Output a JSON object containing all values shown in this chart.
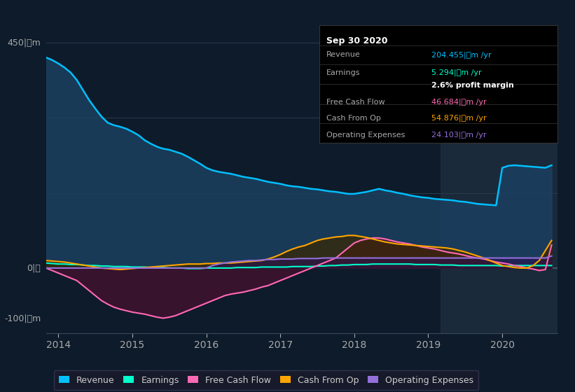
{
  "bg_color": "#0d1b2a",
  "plot_bg_color": "#0d1b2a",
  "ylabel_top": "450|ฮm",
  "ylabel_zero": "0|ฮ",
  "ylabel_bot": "-100|ฮm",
  "xlabel_ticks": [
    "2014",
    "2015",
    "2016",
    "2017",
    "2018",
    "2019",
    "2020"
  ],
  "ylim": [
    -130,
    480
  ],
  "xlim": [
    0,
    83
  ],
  "info_box": {
    "title": "Sep 30 2020",
    "rows": [
      {
        "label": "Revenue",
        "value": "204.455|ฮm /yr",
        "value_color": "#00bfff"
      },
      {
        "label": "Earnings",
        "value": "5.294|ฮm /yr",
        "value_color": "#00ffcc"
      },
      {
        "label": "",
        "value": "2.6% profit margin",
        "value_color": "#ffffff",
        "bold": true
      },
      {
        "label": "Free Cash Flow",
        "value": "46.684|ฮm /yr",
        "value_color": "#ff69b4"
      },
      {
        "label": "Cash From Op",
        "value": "54.876|ฮm /yr",
        "value_color": "#ffa500"
      },
      {
        "label": "Operating Expenses",
        "value": "24.103|ฮm /yr",
        "value_color": "#9370db"
      }
    ]
  },
  "legend": [
    {
      "label": "Revenue",
      "color": "#00bfff"
    },
    {
      "label": "Earnings",
      "color": "#00ffcc"
    },
    {
      "label": "Free Cash Flow",
      "color": "#ff69b4"
    },
    {
      "label": "Cash From Op",
      "color": "#ffa500"
    },
    {
      "label": "Operating Expenses",
      "color": "#9370db"
    }
  ],
  "revenue": [
    420,
    415,
    408,
    400,
    390,
    375,
    355,
    335,
    318,
    302,
    290,
    285,
    282,
    278,
    272,
    265,
    255,
    248,
    242,
    238,
    236,
    232,
    228,
    222,
    215,
    208,
    200,
    195,
    192,
    190,
    188,
    185,
    182,
    180,
    178,
    175,
    172,
    170,
    168,
    165,
    163,
    162,
    160,
    158,
    157,
    155,
    153,
    152,
    150,
    148,
    148,
    150,
    152,
    155,
    158,
    155,
    153,
    150,
    148,
    145,
    143,
    141,
    140,
    138,
    137,
    136,
    135,
    133,
    132,
    130,
    128,
    127,
    126,
    125,
    200,
    204,
    205,
    204,
    203,
    202,
    201,
    200,
    205
  ],
  "earnings": [
    10,
    9,
    8,
    8,
    7,
    7,
    6,
    5,
    5,
    4,
    4,
    3,
    3,
    3,
    2,
    2,
    2,
    1,
    1,
    1,
    0,
    0,
    0,
    -1,
    -1,
    -1,
    0,
    0,
    0,
    0,
    0,
    1,
    1,
    1,
    1,
    2,
    2,
    2,
    2,
    2,
    3,
    3,
    3,
    3,
    4,
    4,
    5,
    5,
    6,
    6,
    7,
    7,
    7,
    8,
    8,
    8,
    8,
    8,
    8,
    8,
    7,
    7,
    7,
    7,
    6,
    6,
    6,
    5,
    5,
    5,
    5,
    5,
    5,
    5,
    4,
    4,
    5,
    5,
    5,
    5,
    5,
    5,
    5
  ],
  "free_cash_flow": [
    0,
    -5,
    -10,
    -15,
    -20,
    -25,
    -35,
    -45,
    -55,
    -65,
    -72,
    -78,
    -82,
    -85,
    -88,
    -90,
    -92,
    -95,
    -98,
    -100,
    -98,
    -95,
    -90,
    -85,
    -80,
    -75,
    -70,
    -65,
    -60,
    -55,
    -52,
    -50,
    -48,
    -45,
    -42,
    -38,
    -35,
    -30,
    -25,
    -20,
    -15,
    -10,
    -5,
    0,
    5,
    10,
    15,
    20,
    30,
    40,
    50,
    55,
    58,
    60,
    60,
    58,
    55,
    52,
    50,
    48,
    45,
    42,
    40,
    38,
    35,
    32,
    30,
    28,
    25,
    22,
    20,
    18,
    15,
    12,
    10,
    8,
    5,
    3,
    0,
    -2,
    -5,
    -3,
    46
  ],
  "cash_from_op": [
    15,
    14,
    13,
    12,
    10,
    8,
    6,
    4,
    2,
    0,
    -1,
    -2,
    -3,
    -2,
    -1,
    0,
    1,
    2,
    3,
    4,
    5,
    6,
    7,
    8,
    8,
    8,
    9,
    9,
    10,
    10,
    10,
    11,
    12,
    13,
    14,
    15,
    18,
    22,
    27,
    33,
    38,
    42,
    45,
    50,
    55,
    58,
    60,
    62,
    63,
    65,
    65,
    63,
    61,
    58,
    55,
    52,
    50,
    48,
    47,
    46,
    45,
    44,
    43,
    42,
    41,
    40,
    38,
    35,
    32,
    28,
    24,
    20,
    15,
    10,
    5,
    3,
    1,
    0,
    0,
    5,
    15,
    35,
    55
  ],
  "operating_expenses": [
    0,
    0,
    0,
    0,
    0,
    0,
    0,
    0,
    0,
    0,
    0,
    0,
    0,
    0,
    0,
    0,
    0,
    0,
    0,
    0,
    0,
    0,
    0,
    0,
    0,
    0,
    0,
    5,
    8,
    10,
    12,
    13,
    14,
    15,
    15,
    16,
    17,
    17,
    18,
    18,
    18,
    19,
    19,
    19,
    19,
    20,
    20,
    20,
    20,
    20,
    20,
    20,
    20,
    20,
    20,
    20,
    20,
    20,
    20,
    20,
    20,
    20,
    20,
    20,
    20,
    20,
    20,
    20,
    20,
    20,
    20,
    20,
    20,
    20,
    20,
    20,
    20,
    20,
    20,
    20,
    20,
    20,
    24
  ],
  "highlight_start": 64,
  "highlight_end": 82,
  "revenue_color": "#00bfff",
  "revenue_fill": "#1a4060",
  "earnings_color": "#00ffcc",
  "earnings_fill": "#0a3030",
  "free_cash_flow_color": "#ff69b4",
  "free_cash_flow_fill": "#4a1030",
  "cash_from_op_color": "#ffa500",
  "cash_from_op_fill": "#3a2800",
  "op_exp_color": "#9370db",
  "op_exp_fill": "#2a1050"
}
